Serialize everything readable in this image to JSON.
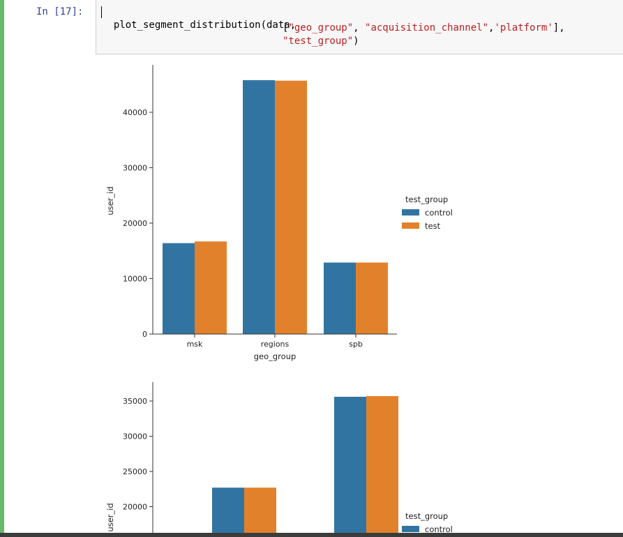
{
  "cell": {
    "prompt": "In [17]:",
    "code": {
      "line1": "plot_segment_distribution(data,",
      "line2_open": "[",
      "line2_s1": "\"geo_group\"",
      "line2_sep1": ", ",
      "line2_s2": "\"acquisition_channel\"",
      "line2_sep2": ",",
      "line2_s3": "'platform'",
      "line2_close": "],",
      "line3_s": "\"test_group\"",
      "line3_close": ")"
    }
  },
  "colors": {
    "control": "#3274a1",
    "test": "#e1812c",
    "cell_border": "#66bb6a",
    "prompt": "#303f9f",
    "string": "#ba2121"
  },
  "chart_data": [
    {
      "type": "bar",
      "title": "",
      "xlabel": "geo_group",
      "ylabel": "user_id",
      "categories": [
        "msk",
        "regions",
        "spb"
      ],
      "ylim": [
        0,
        47500
      ],
      "yticks": [
        0,
        10000,
        20000,
        30000,
        40000
      ],
      "legend_title": "test_group",
      "legend_position": "right",
      "series": [
        {
          "name": "control",
          "values": [
            16400,
            45800,
            12900
          ]
        },
        {
          "name": "test",
          "values": [
            16700,
            45700,
            12900
          ]
        }
      ]
    },
    {
      "type": "bar",
      "title": "",
      "xlabel": "",
      "ylabel": "user_id",
      "categories": [
        "",
        "",
        ""
      ],
      "ylim": [
        15000,
        37500
      ],
      "yticks": [
        20000,
        25000,
        30000,
        35000
      ],
      "legend_title": "test_group",
      "legend_position": "right",
      "series": [
        {
          "name": "control",
          "values": [
            null,
            22700,
            35600
          ]
        },
        {
          "name": "test",
          "values": [
            null,
            22700,
            35700
          ]
        }
      ]
    }
  ]
}
